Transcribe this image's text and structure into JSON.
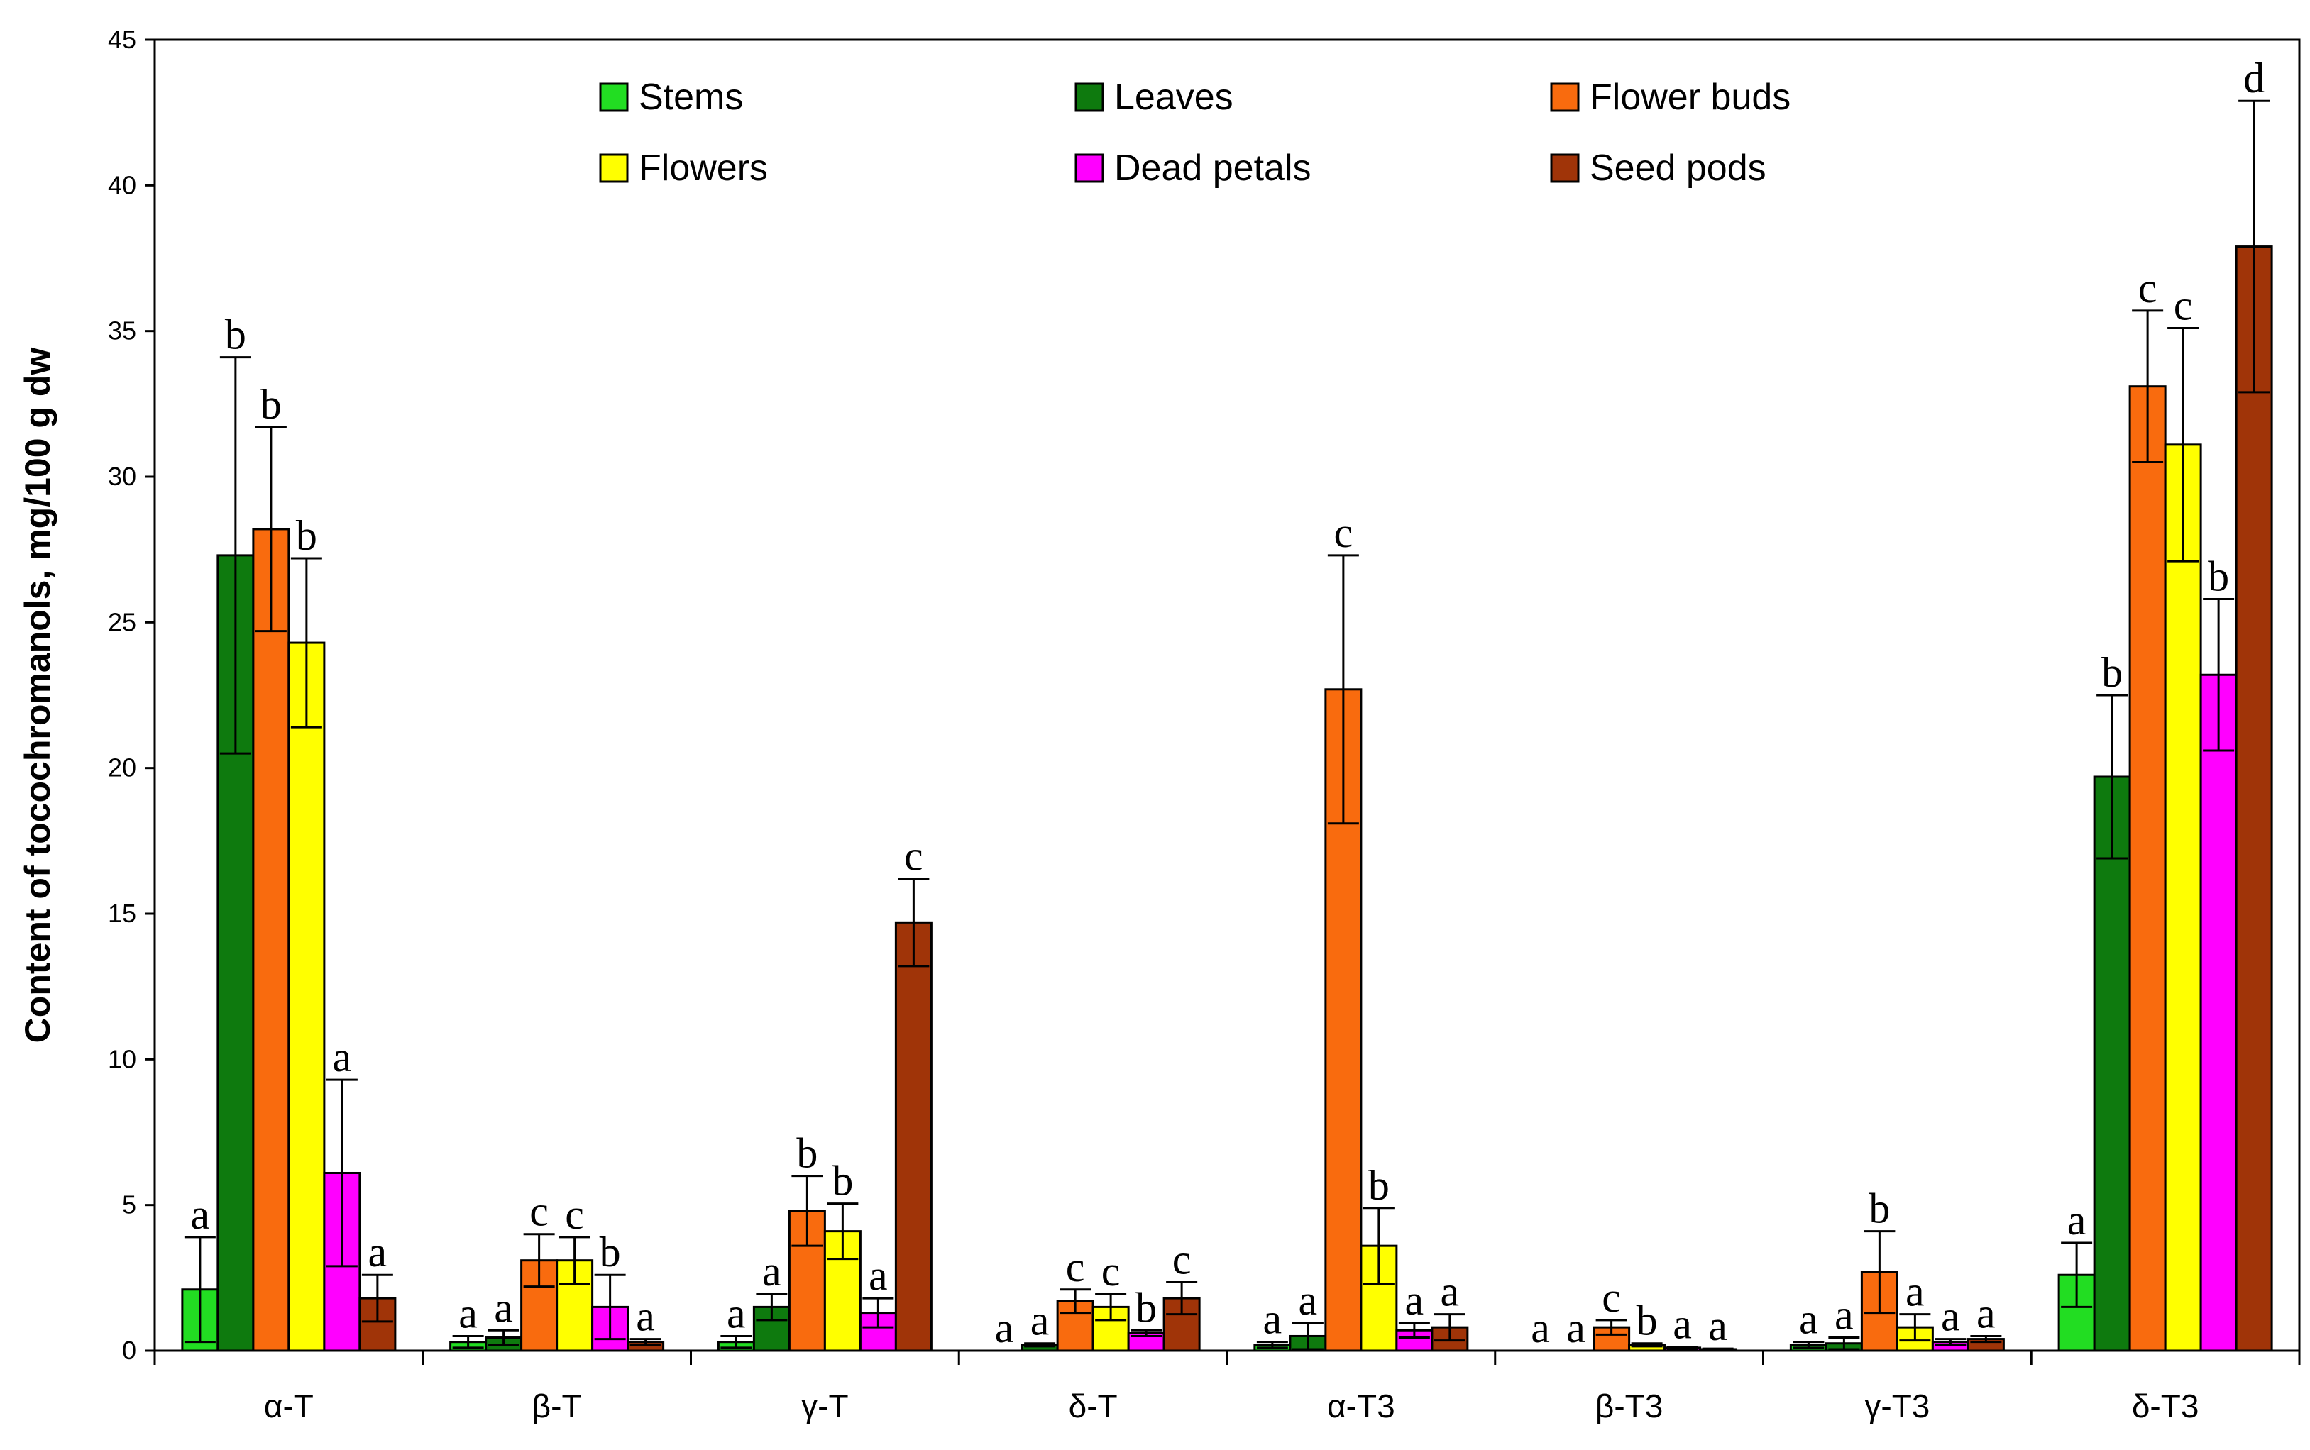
{
  "chart_data": {
    "type": "bar",
    "title": "",
    "xlabel": "",
    "ylabel": "Content of tocochromanols, mg/100 g dw",
    "ylim": [
      0,
      45
    ],
    "yticks": [
      0,
      5,
      10,
      15,
      20,
      25,
      30,
      35,
      40,
      45
    ],
    "grid": false,
    "legend_position": "top",
    "categories": [
      "α-T",
      "β-T",
      "γ-T",
      "δ-T",
      "α-T3",
      "β-T3",
      "γ-T3",
      "δ-T3"
    ],
    "series": [
      {
        "name": "Stems",
        "color": "#22dd22",
        "values": [
          2.1,
          0.3,
          0.3,
          0.0,
          0.2,
          0.0,
          0.2,
          2.6
        ],
        "errors": [
          1.8,
          0.2,
          0.2,
          0.0,
          0.1,
          0.0,
          0.1,
          1.1
        ],
        "letters": [
          "a",
          "a",
          "a",
          "a",
          "a",
          "a",
          "a",
          "a"
        ]
      },
      {
        "name": "Leaves",
        "color": "#0e7a0e",
        "values": [
          27.3,
          0.45,
          1.5,
          0.2,
          0.5,
          0.0,
          0.25,
          19.7
        ],
        "errors": [
          6.8,
          0.25,
          0.45,
          0.05,
          0.45,
          0.0,
          0.2,
          2.8
        ],
        "letters": [
          "b",
          "a",
          "a",
          "a",
          "a",
          "a",
          "a",
          "b"
        ]
      },
      {
        "name": "Flower buds",
        "color": "#f96b0e",
        "values": [
          28.2,
          3.1,
          4.8,
          1.7,
          22.7,
          0.8,
          2.7,
          33.1
        ],
        "errors": [
          3.5,
          0.9,
          1.2,
          0.4,
          4.6,
          0.25,
          1.4,
          2.6
        ],
        "letters": [
          "b",
          "c",
          "b",
          "c",
          "c",
          "c",
          "b",
          "c"
        ]
      },
      {
        "name": "Flowers",
        "color": "#ffff00",
        "values": [
          24.3,
          3.1,
          4.1,
          1.5,
          3.6,
          0.2,
          0.8,
          31.1
        ],
        "errors": [
          2.9,
          0.8,
          0.95,
          0.45,
          1.3,
          0.05,
          0.45,
          4.0
        ],
        "letters": [
          "b",
          "c",
          "b",
          "c",
          "b",
          "b",
          "a",
          "c"
        ]
      },
      {
        "name": "Dead petals",
        "color": "#ff00ff",
        "values": [
          6.1,
          1.5,
          1.3,
          0.6,
          0.7,
          0.1,
          0.3,
          23.2
        ],
        "errors": [
          3.2,
          1.1,
          0.5,
          0.1,
          0.25,
          0.03,
          0.1,
          2.6
        ],
        "letters": [
          "a",
          "b",
          "a",
          "b",
          "a",
          "a",
          "a",
          "b"
        ]
      },
      {
        "name": "Seed pods",
        "color": "#a03408",
        "values": [
          1.8,
          0.3,
          14.7,
          1.8,
          0.8,
          0.05,
          0.4,
          37.9
        ],
        "errors": [
          0.8,
          0.1,
          1.5,
          0.55,
          0.45,
          0.02,
          0.1,
          5.0
        ],
        "letters": [
          "a",
          "a",
          "c",
          "c",
          "a",
          "a",
          "a",
          "d"
        ]
      }
    ]
  }
}
